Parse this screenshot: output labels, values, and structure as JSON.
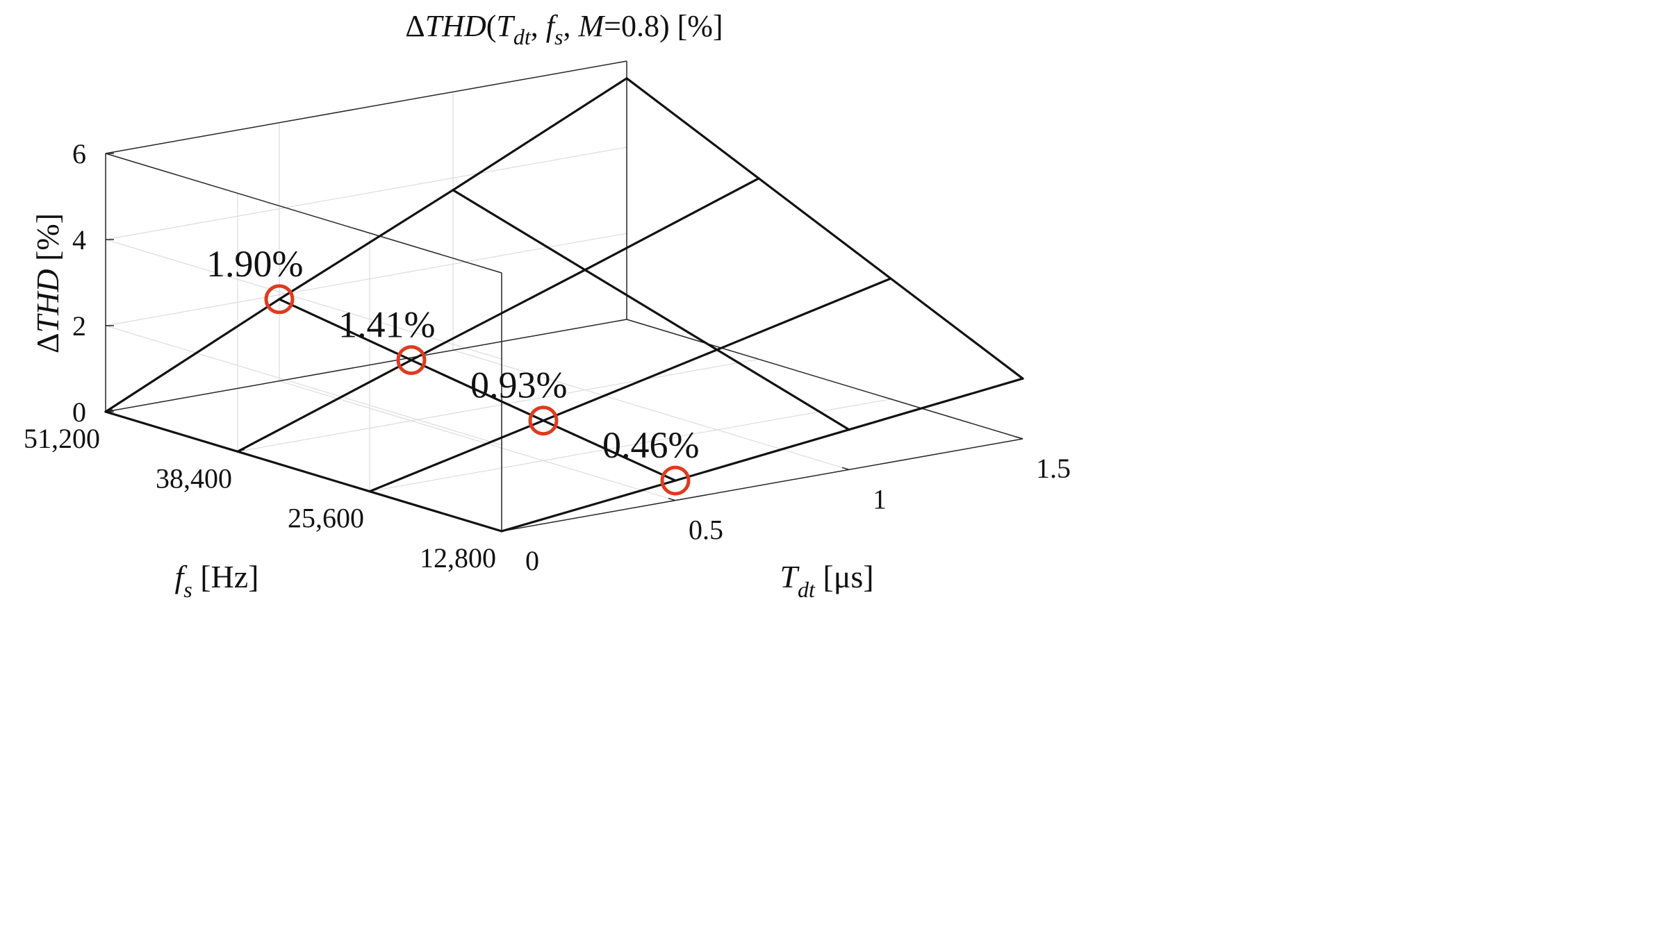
{
  "chart_data": {
    "type": "surface",
    "title": "ΔTHD(Tdt, fs, M=0.8) [%]",
    "title_parts": {
      "delta": "Δ",
      "thd": "THD",
      "open": "(",
      "t": "T",
      "t_sub": "dt",
      "sep1": ", ",
      "f": "f",
      "f_sub": "s",
      "sep2": ", ",
      "m": "M",
      "m_value": "=0.8) [%]"
    },
    "x_axis": {
      "label": "Tdt [μs]",
      "label_main": "T",
      "label_sub": "dt",
      "label_unit": " [μs]",
      "ticks": [
        0,
        0.5,
        1,
        1.5
      ],
      "tick_labels": [
        "0",
        "0.5",
        "1",
        "1.5"
      ],
      "range": [
        0,
        1.5
      ]
    },
    "y_axis": {
      "label": "fs [Hz]",
      "label_main": "f",
      "label_sub": "s",
      "label_unit": " [Hz]",
      "ticks": [
        12800,
        25600,
        38400,
        51200
      ],
      "tick_labels": [
        "12,800",
        "25,600",
        "38,400",
        "51,200"
      ],
      "range": [
        12800,
        51200
      ]
    },
    "z_axis": {
      "label": "ΔTHD [%]",
      "label_delta": "Δ",
      "label_main": "THD",
      "label_unit": " [%]",
      "ticks": [
        0,
        2,
        4,
        6
      ],
      "tick_labels": [
        "0",
        "2",
        "4",
        "6"
      ],
      "range": [
        0,
        6
      ]
    },
    "surface": {
      "x": [
        0,
        0.5,
        1,
        1.5
      ],
      "y": [
        12800,
        25600,
        38400,
        51200
      ],
      "z": [
        [
          0,
          0,
          0,
          0
        ],
        [
          0.46,
          0.93,
          1.41,
          1.9
        ],
        [
          0.93,
          1.86,
          2.79,
          3.72
        ],
        [
          1.4,
          2.8,
          4.2,
          5.6
        ]
      ]
    },
    "annotations": [
      {
        "x": 0.5,
        "y": 51200,
        "z": 1.9,
        "label": "1.90%"
      },
      {
        "x": 0.5,
        "y": 38400,
        "z": 1.41,
        "label": "1.41%"
      },
      {
        "x": 0.5,
        "y": 25600,
        "z": 0.93,
        "label": "0.93%"
      },
      {
        "x": 0.5,
        "y": 12800,
        "z": 0.46,
        "label": "0.46%"
      }
    ],
    "marker_color": "#e03a1e",
    "grid": true
  }
}
